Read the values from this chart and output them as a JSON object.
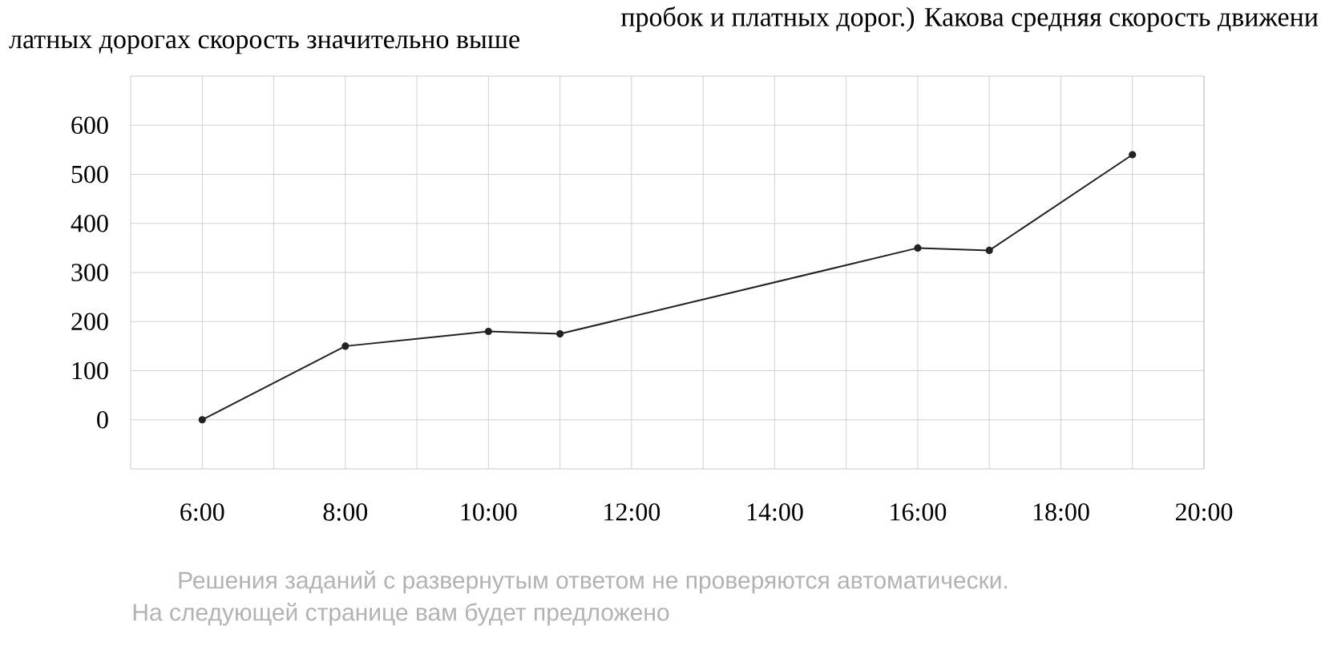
{
  "chart_data": {
    "type": "line",
    "x": [
      6,
      8,
      10,
      11,
      16,
      17,
      19
    ],
    "values": [
      0,
      150,
      180,
      175,
      350,
      345,
      540
    ],
    "color": "#222222",
    "marker": "circle",
    "line_style": "solid",
    "grid": true,
    "xlim": [
      5,
      20
    ],
    "ylim": [
      -100,
      700
    ],
    "xticks": [
      {
        "value": 6,
        "label": "6:00"
      },
      {
        "value": 7,
        "label": null
      },
      {
        "value": 8,
        "label": "8:00"
      },
      {
        "value": 9,
        "label": null
      },
      {
        "value": 10,
        "label": "10:00"
      },
      {
        "value": 11,
        "label": null
      },
      {
        "value": 12,
        "label": "12:00"
      },
      {
        "value": 13,
        "label": null
      },
      {
        "value": 14,
        "label": "14:00"
      },
      {
        "value": 15,
        "label": null
      },
      {
        "value": 16,
        "label": "16:00"
      },
      {
        "value": 17,
        "label": null
      },
      {
        "value": 18,
        "label": "18:00"
      },
      {
        "value": 19,
        "label": null
      },
      {
        "value": 20,
        "label": "20:00"
      }
    ],
    "yticks": [
      0,
      100,
      200,
      300,
      400,
      500,
      600
    ],
    "annotations": [
      "пробок и платных дорог.) Какова средняя скорость движени",
      "латных дорогах скорость значительно выше",
      "Решения заданий с развернутым ответом не проверяются автоматически.",
      "На следующей странице вам будет предложено"
    ]
  }
}
